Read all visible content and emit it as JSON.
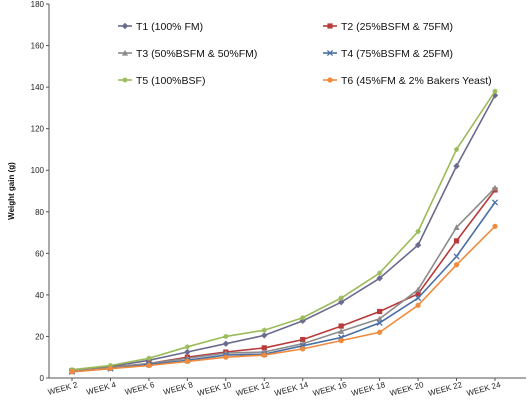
{
  "chart_data": {
    "type": "line",
    "ylabel": "Weight gain (g)",
    "xlabel": "",
    "ylim": [
      0,
      180
    ],
    "yticks": [
      0,
      20,
      40,
      60,
      80,
      100,
      120,
      140,
      160,
      180
    ],
    "categories": [
      "WEEK 2",
      "WEEK 4",
      "WEEK 6",
      "WEEK 8",
      "WEEK 10",
      "WEEK 12",
      "WEEK 14",
      "WEEK 16",
      "WEEK 18",
      "WEEK 20",
      "WEEK 22",
      "WEEK 24"
    ],
    "grid": false,
    "legend_position": "top",
    "series": [
      {
        "name": "T1 (100% FM)",
        "color": "#6b6b8e",
        "marker": "diamond",
        "values": [
          3.5,
          5.5,
          8.5,
          12.5,
          16.5,
          20.5,
          27.5,
          36.5,
          48,
          64,
          102,
          136
        ]
      },
      {
        "name": "T2 (25%BSFM & 75FM)",
        "color": "#b83a3a",
        "marker": "square",
        "values": [
          3.5,
          5,
          7,
          10,
          12.5,
          14.5,
          18.5,
          25,
          32,
          40.5,
          66,
          90.5
        ]
      },
      {
        "name": "T3 (50%BSFM & 50%FM)",
        "color": "#8c8c8c",
        "marker": "triangle",
        "values": [
          3.5,
          5,
          7,
          9.5,
          12,
          12.5,
          16.5,
          22.5,
          28.5,
          42.5,
          72.5,
          91.5
        ]
      },
      {
        "name": "T4 (75%BSFM & 25FM)",
        "color": "#4a6fa5",
        "marker": "x",
        "values": [
          3,
          4.5,
          6.5,
          8.5,
          11,
          11.5,
          15.5,
          19.5,
          26.5,
          38.5,
          58.5,
          84.5
        ]
      },
      {
        "name": "T5 (100%BSF)",
        "color": "#9bbb59",
        "marker": "star",
        "values": [
          4,
          6,
          9.5,
          15,
          20,
          23,
          29,
          38.5,
          50.5,
          70.5,
          110,
          138
        ]
      },
      {
        "name": "T6 (45%FM & 2% Bakers Yeast)",
        "color": "#f08a3c",
        "marker": "circle",
        "values": [
          3,
          4.5,
          6,
          8,
          10,
          11,
          14,
          18,
          22,
          35,
          54.5,
          73
        ]
      }
    ]
  }
}
